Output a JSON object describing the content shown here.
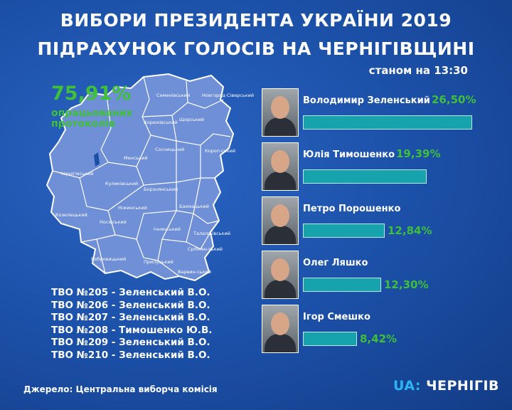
{
  "header": {
    "title_line1": "ВИБОРИ ПРЕЗИДЕНТА УКРАЇНИ 2019",
    "title_line2": "ПІДРАХУНОК ГОЛОСІВ НА ЧЕРНІГІВЩИНІ",
    "as_of": "станом на 13:30"
  },
  "protocols": {
    "percent": "75,91%",
    "label": "опрацьованих протоколів"
  },
  "map": {
    "districts": [
      "Семенівський",
      "Новгород-Сіверський",
      "Корюківський",
      "Щорський",
      "Сосницький",
      "Короп-ський",
      "Менський",
      "Чернігівський",
      "Куликівський",
      "Борзнянський",
      "Козелецький",
      "Ніжинський",
      "Бахмацький",
      "Носівський",
      "Ічнянський",
      "Талала-ївський",
      "Срібнян-ський",
      "Бобровицький",
      "Прилуцький",
      "Варвин-ський"
    ],
    "fill_color": "#6f8fd6",
    "border_color": "#ffffff"
  },
  "tvo": [
    "ТВО №205 - Зеленський В.О.",
    "ТВО №206 - Зеленський В.О.",
    "ТВО №207 - Зеленський В.О.",
    "ТВО №208 - Тимошенко Ю.В.",
    "ТВО №209 - Зеленський В.О.",
    "ТВО №210 - Зеленський В.О."
  ],
  "footer": {
    "source": "Джерело: Центральна виборча комісія",
    "logo_ua": "UA",
    "logo_sep": ":",
    "logo_city": "ЧЕРНІГІВ"
  },
  "chart_data": {
    "type": "bar",
    "title": "",
    "categories": [
      "Володимир Зеленський",
      "Юлія Тимошенко",
      "Петро Порошенко",
      "Олег Ляшко",
      "Ігор Смешко"
    ],
    "values": [
      26.5,
      19.39,
      12.84,
      12.3,
      8.42
    ],
    "value_labels": [
      "26,50%",
      "19,39%",
      "12,84%",
      "12,30%",
      "8,42%"
    ],
    "unit": "%",
    "bar_color": "#16a3ad",
    "value_color": "#3fbf3a"
  }
}
